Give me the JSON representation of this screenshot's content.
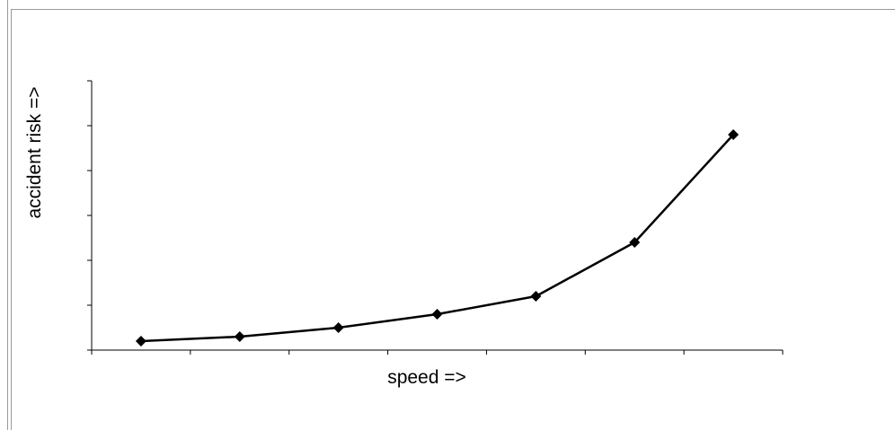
{
  "chart_data": {
    "type": "line",
    "title": "",
    "xlabel": "speed =>",
    "ylabel": "accident risk =>",
    "x": [
      1,
      2,
      3,
      4,
      5,
      6,
      7
    ],
    "series": [
      {
        "values": [
          0.2,
          0.3,
          0.5,
          0.8,
          1.2,
          2.4,
          4.8
        ]
      }
    ],
    "xlim": [
      0.5,
      7.5
    ],
    "ylim": [
      0,
      6
    ],
    "x_ticks": 7,
    "y_ticks": [
      0,
      1,
      2,
      3,
      4,
      5,
      6
    ],
    "tick_labels": "none",
    "grid": false,
    "legend": "none",
    "line_color": "#000000",
    "marker": "diamond"
  }
}
